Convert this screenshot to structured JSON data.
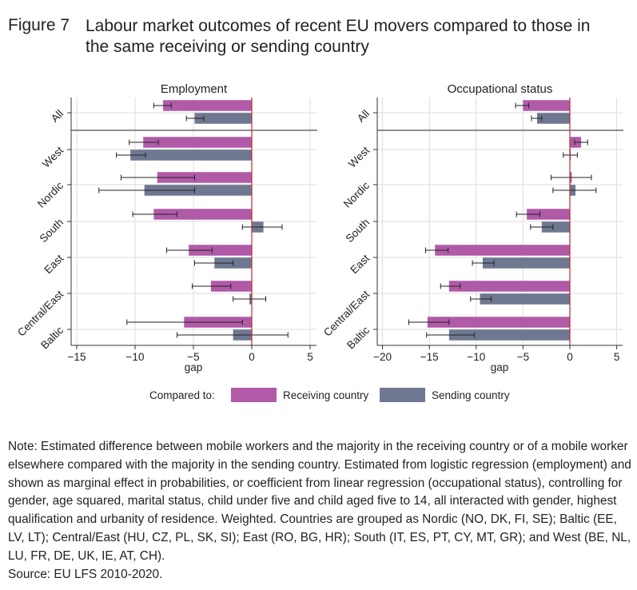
{
  "figure": {
    "label": "Figure 7",
    "title": "Labour market outcomes of recent EU movers compared to those in the same receiving or sending country"
  },
  "chart_data": [
    {
      "type": "bar",
      "orientation": "horizontal",
      "title": "Employment",
      "xlabel": "gap",
      "xlim": [
        -15.5,
        5.5
      ],
      "xticks": [
        -15,
        -10,
        -5,
        0,
        5
      ],
      "categories": [
        "All",
        "West",
        "Nordic",
        "South",
        "East",
        "Central/East",
        "Baltic"
      ],
      "series": [
        {
          "name": "Receiving country",
          "values": [
            -7.6,
            -9.3,
            -8.1,
            -8.4,
            -5.4,
            -3.5,
            -5.8
          ],
          "ci_low": [
            -8.4,
            -10.5,
            -11.2,
            -10.2,
            -7.3,
            -5.1,
            -10.7
          ],
          "ci_high": [
            -6.9,
            -8.0,
            -4.9,
            -6.4,
            -3.4,
            -1.8,
            -0.8
          ]
        },
        {
          "name": "Sending country",
          "values": [
            -4.9,
            -10.4,
            -9.2,
            1.0,
            -3.2,
            -0.2,
            -1.6
          ],
          "ci_low": [
            -5.6,
            -11.6,
            -13.1,
            -0.8,
            -4.9,
            -1.6,
            -6.4
          ],
          "ci_high": [
            -4.1,
            -9.1,
            -4.9,
            2.6,
            -1.6,
            1.2,
            3.1
          ]
        }
      ],
      "grid": true
    },
    {
      "type": "bar",
      "orientation": "horizontal",
      "title": "Occupational status",
      "xlabel": "gap",
      "xlim": [
        -20.5,
        5.5
      ],
      "xticks": [
        -20,
        -15,
        -10,
        -5,
        0,
        5
      ],
      "categories": [
        "All",
        "West",
        "Nordic",
        "South",
        "East",
        "Central/East",
        "Baltic"
      ],
      "series": [
        {
          "name": "Receiving country",
          "values": [
            -5.0,
            1.2,
            0.2,
            -4.6,
            -14.4,
            -12.9,
            -15.2
          ],
          "ci_low": [
            -5.8,
            0.5,
            -2.0,
            -5.7,
            -15.4,
            -13.8,
            -17.2
          ],
          "ci_high": [
            -4.4,
            1.9,
            2.3,
            -3.2,
            -13.0,
            -11.7,
            -12.9
          ]
        },
        {
          "name": "Sending country",
          "values": [
            -3.5,
            0.1,
            0.6,
            -3.0,
            -9.3,
            -9.6,
            -12.9
          ],
          "ci_low": [
            -4.1,
            -0.7,
            -1.8,
            -4.2,
            -10.4,
            -10.6,
            -15.3
          ],
          "ci_high": [
            -3.0,
            0.8,
            2.8,
            -1.8,
            -8.1,
            -8.4,
            -10.2
          ]
        }
      ],
      "grid": true
    }
  ],
  "legend": {
    "prefix": "Compared to:",
    "items": [
      {
        "label": "Receiving country",
        "color": "#b05aa8"
      },
      {
        "label": "Sending country",
        "color": "#6f7891"
      }
    ]
  },
  "note": {
    "text": "Note: Estimated difference between mobile workers and the majority in the receiving country or of a mobile worker elsewhere compared with the majority in the sending country. Estimated from logistic regression (employment) and shown as marginal effect in probabilities, or coefficient from linear regression (occupational status), controlling for gender, age squared, marital status, child under five and child aged five to 14, all interacted with gender, highest qualification and urbanity of residence. Weighted. Countries are grouped as Nordic (NO, DK, FI, SE); Baltic (EE, LV, LT); Central/East (HU, CZ, PL, SK, SI); East (RO, BG, HR); South (IT, ES, PT, CY, MT, GR); and West (BE, NL, LU, FR, DE, UK, IE, AT, CH).",
    "source": "Source: EU LFS 2010-2020."
  },
  "colors": {
    "receiving": "#b05aa8",
    "sending": "#6f7891",
    "zero_line": "#c0282d",
    "grid": "#dcdcdc",
    "axis": "#333333"
  }
}
